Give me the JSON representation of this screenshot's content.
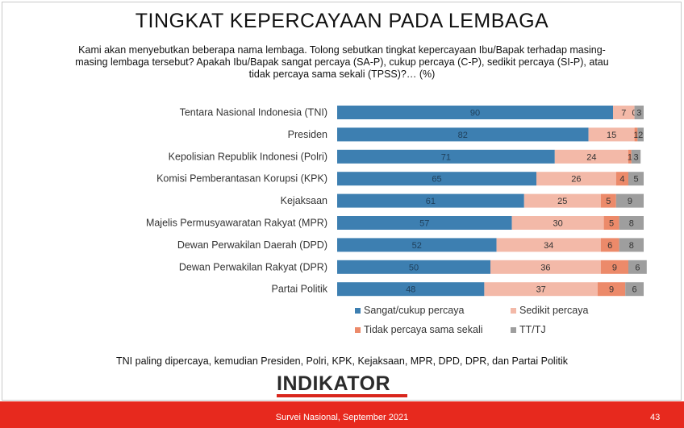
{
  "header": {
    "title": "TINGKAT KEPERCAYAAN PADA LEMBAGA",
    "subtitle_lines": [
      "Kami akan menyebutkan beberapa nama lembaga. Tolong sebutkan tingkat kepercayaan Ibu/Bapak terhadap masing-",
      "masing lembaga tersebut? Apakah Ibu/Bapak sangat percaya (SA-P), cukup percaya (C-P), sedikit percaya (SI-P), atau",
      "tidak percaya sama sekali (TPSS)?… (%)"
    ]
  },
  "colors": {
    "series": [
      "#3d7fb1",
      "#f3b9a8",
      "#ec8a6a",
      "#9e9e9e"
    ],
    "footer": "#e7291e"
  },
  "chart_data": {
    "type": "bar",
    "orientation": "horizontal",
    "stacked": true,
    "categories": [
      "Tentara Nasional Indonesia (TNI)",
      "Presiden",
      "Kepolisian Republik Indonesi (Polri)",
      "Komisi Pemberantasan Korupsi (KPK)",
      "Kejaksaan",
      "Majelis Permusyawaratan Rakyat (MPR)",
      "Dewan Perwakilan Daerah (DPD)",
      "Dewan Perwakilan Rakyat (DPR)",
      "Partai Politik"
    ],
    "series": [
      {
        "name": "Sangat/cukup percaya",
        "values": [
          90,
          82,
          71,
          65,
          61,
          57,
          52,
          50,
          48
        ]
      },
      {
        "name": "Sedikit percaya",
        "values": [
          7,
          15,
          24,
          26,
          25,
          30,
          34,
          36,
          37
        ]
      },
      {
        "name": "Tidak percaya sama sekali",
        "values": [
          0,
          1,
          1,
          4,
          5,
          5,
          6,
          9,
          9
        ]
      },
      {
        "name": "TT/TJ",
        "values": [
          3,
          2,
          3,
          5,
          9,
          8,
          8,
          6,
          6
        ]
      }
    ],
    "xlim": [
      0,
      100
    ],
    "legend_position": "bottom",
    "grid": false
  },
  "caption": "TNI paling dipercaya, kemudian Presiden, Polri, KPK, Kejaksaan, MPR, DPD, DPR, dan Partai Politik",
  "logo_text": "INDIKATOR",
  "footer": {
    "text": "Survei Nasional, September 2021",
    "page_number": "43"
  }
}
